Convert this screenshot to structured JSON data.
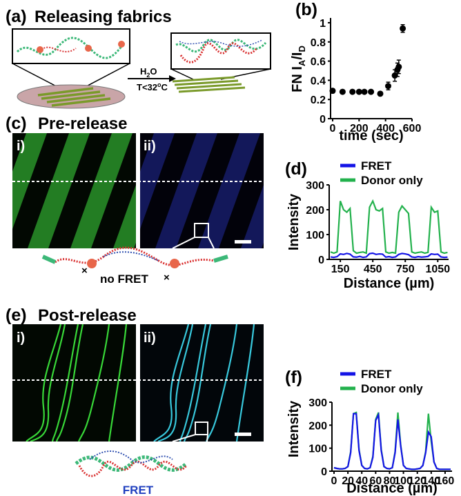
{
  "panels": {
    "a": {
      "label": "(a)",
      "title": "Releasing fabrics",
      "condition": [
        "H",
        "2",
        "O"
      ],
      "temperature": [
        "T<32",
        "o",
        "C"
      ]
    },
    "c": {
      "label": "(c)",
      "title": "Pre-release",
      "images": [
        "i)",
        "ii)"
      ],
      "caption": "no FRET"
    },
    "e": {
      "label": "(e)",
      "title": "Post-release",
      "images": [
        "i)",
        "ii)"
      ],
      "caption": "FRET"
    }
  },
  "chart_data": [
    {
      "type": "scatter",
      "panel_label": "(b)",
      "xlabel": "time (sec)",
      "ylabel": [
        "FN  I",
        "A",
        "/I",
        "D"
      ],
      "x": [
        0,
        75,
        150,
        200,
        240,
        290,
        360,
        420,
        470,
        490,
        500,
        530
      ],
      "values": [
        0.29,
        0.28,
        0.28,
        0.28,
        0.28,
        0.28,
        0.26,
        0.34,
        0.45,
        0.51,
        0.54,
        0.94
      ],
      "errors": [
        0.02,
        0.02,
        0.01,
        0.01,
        0.01,
        0.01,
        0.02,
        0.04,
        0.06,
        0.07,
        0.07,
        0.04
      ],
      "color": "#000000",
      "xlim": [
        0,
        600
      ],
      "xticks": [
        0,
        200,
        400,
        600
      ],
      "ylim": [
        0,
        1.05
      ],
      "yticks": [
        0,
        0.2,
        0.4,
        0.6,
        0.8,
        1
      ]
    },
    {
      "type": "line",
      "panel_label": "(d)",
      "xlabel": "Distance (µm)",
      "ylabel": "Intensity",
      "x": [
        60,
        90,
        120,
        150,
        180,
        210,
        240,
        270,
        300,
        330,
        360,
        390,
        420,
        450,
        480,
        510,
        540,
        570,
        600,
        630,
        660,
        690,
        720,
        750,
        780,
        810,
        840,
        870,
        900,
        930,
        960,
        990,
        1020,
        1050,
        1080,
        1110,
        1140
      ],
      "series": [
        {
          "name": "FRET",
          "color": "#1414e6",
          "values": [
            10,
            8,
            11,
            22,
            20,
            24,
            21,
            10,
            9,
            12,
            8,
            10,
            23,
            25,
            20,
            22,
            21,
            9,
            11,
            8,
            10,
            20,
            24,
            22,
            19,
            10,
            8,
            11,
            9,
            10,
            12,
            22,
            20,
            21,
            10,
            8,
            9
          ]
        },
        {
          "name": "Donor only",
          "color": "#22b14c",
          "values": [
            30,
            25,
            30,
            235,
            200,
            190,
            205,
            35,
            25,
            28,
            30,
            25,
            210,
            235,
            200,
            195,
            205,
            30,
            25,
            28,
            25,
            190,
            215,
            200,
            185,
            30,
            25,
            28,
            30,
            25,
            28,
            210,
            190,
            195,
            30,
            25,
            28
          ]
        }
      ],
      "xlim": [
        60,
        1150
      ],
      "xticks": [
        150,
        450,
        750,
        1050
      ],
      "ylim": [
        0,
        300
      ],
      "yticks": [
        0,
        100,
        200,
        300
      ]
    },
    {
      "type": "line",
      "panel_label": "(f)",
      "xlabel": "Distance (µm)",
      "ylabel": "Intensity",
      "x": [
        0,
        4,
        8,
        12,
        16,
        20,
        24,
        28,
        32,
        36,
        40,
        44,
        48,
        52,
        56,
        60,
        64,
        68,
        72,
        76,
        80,
        84,
        88,
        92,
        96,
        100,
        104,
        108,
        112,
        116,
        120,
        124,
        128,
        132,
        136,
        140,
        144,
        148,
        152,
        156,
        160,
        164,
        168
      ],
      "series": [
        {
          "name": "FRET",
          "color": "#1414e6",
          "values": [
            15,
            12,
            10,
            10,
            12,
            20,
            80,
            250,
            250,
            90,
            25,
            12,
            10,
            15,
            60,
            220,
            245,
            90,
            20,
            12,
            10,
            15,
            80,
            225,
            110,
            25,
            12,
            10,
            8,
            8,
            10,
            12,
            25,
            80,
            170,
            150,
            40,
            12,
            8,
            8,
            8,
            8,
            8
          ]
        },
        {
          "name": "Donor only",
          "color": "#22b14c",
          "values": [
            15,
            12,
            10,
            10,
            12,
            20,
            85,
            250,
            255,
            95,
            25,
            12,
            10,
            15,
            65,
            225,
            255,
            95,
            20,
            12,
            10,
            15,
            85,
            255,
            115,
            25,
            12,
            10,
            8,
            8,
            10,
            12,
            25,
            85,
            250,
            130,
            40,
            12,
            8,
            8,
            8,
            8,
            8
          ]
        }
      ],
      "xlim": [
        0,
        170
      ],
      "xticks": [
        0,
        20,
        40,
        60,
        80,
        100,
        120,
        140,
        160
      ],
      "ylim": [
        0,
        300
      ],
      "yticks": [
        0,
        100,
        200,
        300
      ]
    }
  ]
}
